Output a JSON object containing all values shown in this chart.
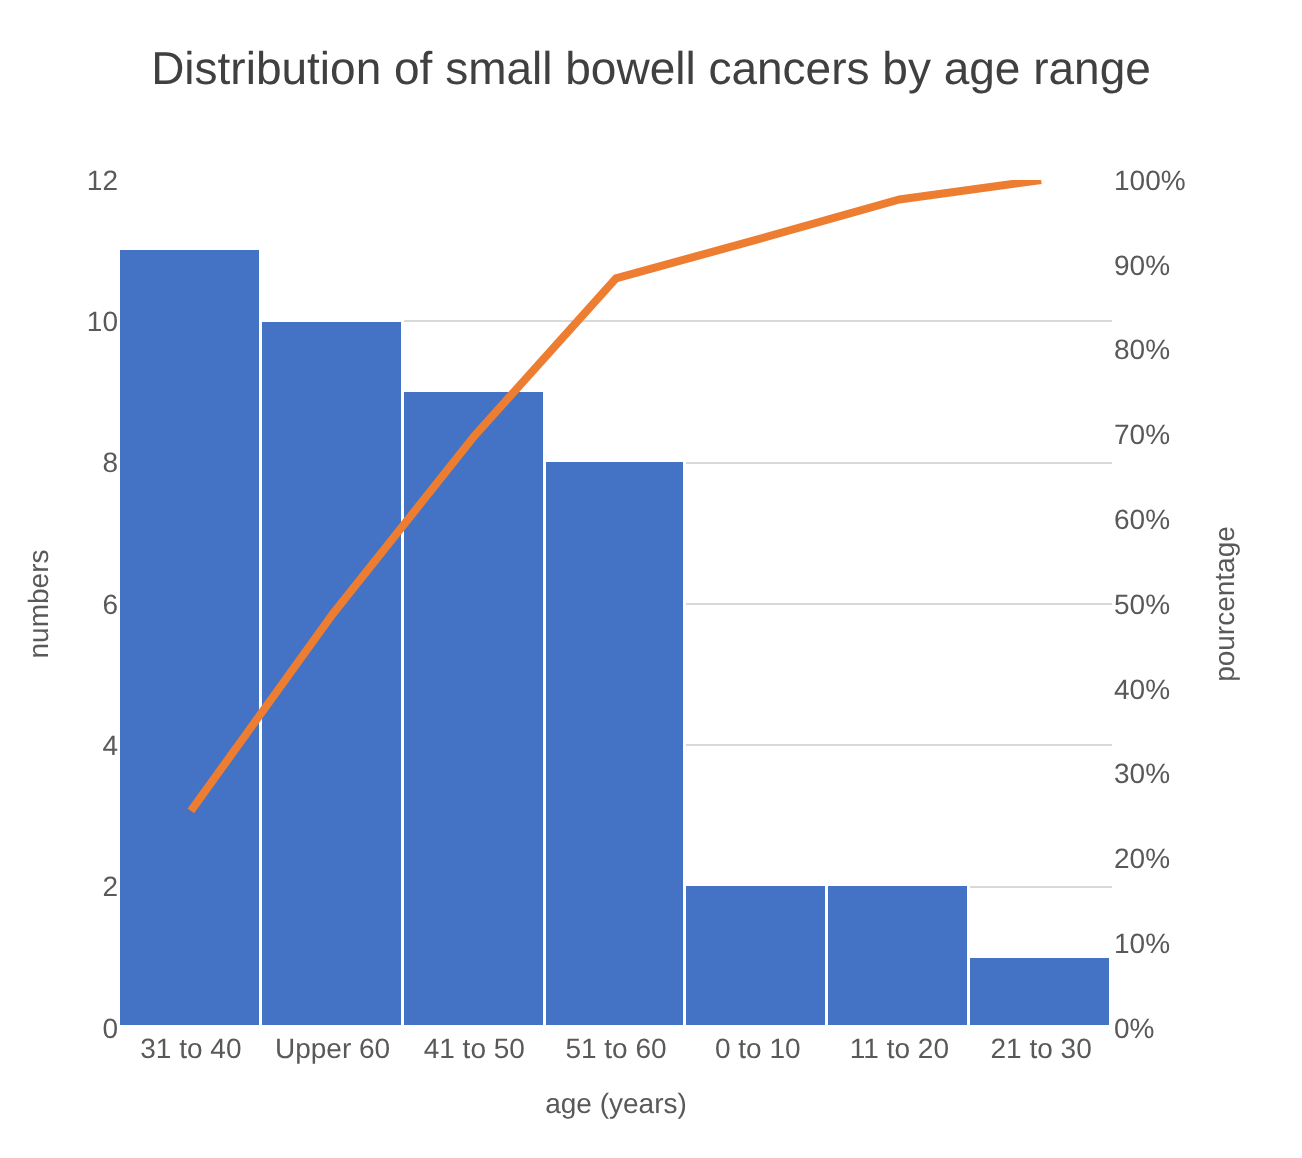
{
  "chart_data": {
    "type": "bar",
    "title": "Distribution of small bowell cancers by age range",
    "xlabel": "age (years)",
    "ylabel": "numbers",
    "y2label": "pourcentage",
    "categories": [
      "31 to 40",
      "Upper 60",
      "41 to 50",
      "51 to 60",
      "0 to 10",
      "11 to 20",
      "21 to 30"
    ],
    "series": [
      {
        "color": "#4472c4",
        "values": [
          11,
          10,
          9,
          8,
          2,
          2,
          1
        ]
      },
      {
        "type": "line",
        "axis": "y2",
        "color": "#ed7d31",
        "values": [
          25.6,
          48.8,
          69.8,
          88.4,
          93.0,
          97.7,
          100
        ]
      }
    ],
    "ylim": [
      0,
      12
    ],
    "yticks": [
      0,
      2,
      4,
      6,
      8,
      10,
      12
    ],
    "y2lim": [
      0,
      100
    ],
    "y2ticks": [
      {
        "value": 0,
        "label": "0%"
      },
      {
        "value": 10,
        "label": "10%"
      },
      {
        "value": 20,
        "label": "20%"
      },
      {
        "value": 30,
        "label": "30%"
      },
      {
        "value": 40,
        "label": "40%"
      },
      {
        "value": 50,
        "label": "50%"
      },
      {
        "value": 60,
        "label": "60%"
      },
      {
        "value": 70,
        "label": "70%"
      },
      {
        "value": 80,
        "label": "80%"
      },
      {
        "value": 90,
        "label": "90%"
      },
      {
        "value": 100,
        "label": "100%"
      }
    ],
    "grid": "y",
    "marker": "none",
    "line_style": "solid"
  }
}
